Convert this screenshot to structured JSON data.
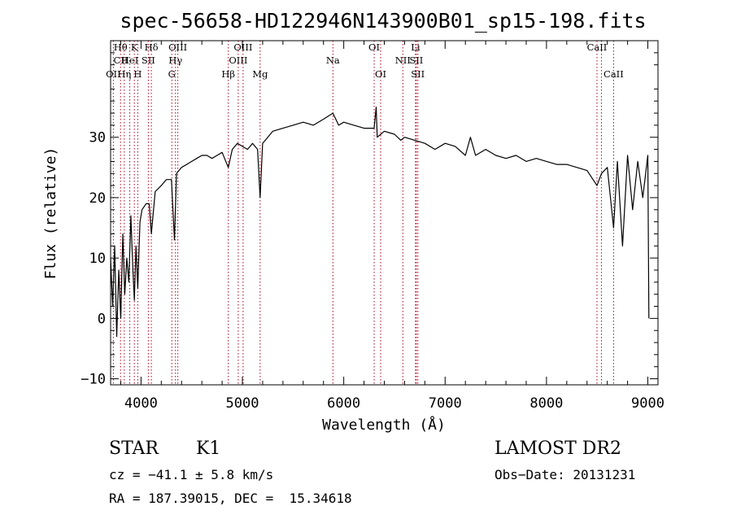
{
  "chart_data": {
    "type": "line",
    "title": "spec-56658-HD122946N143900B01_sp15-198.fits",
    "xlabel": "Wavelength (Å)",
    "ylabel": "Flux (relative)",
    "xlim": [
      3700,
      9100
    ],
    "ylim": [
      -11,
      46
    ],
    "xticks": [
      4000,
      5000,
      6000,
      7000,
      8000,
      9000
    ],
    "yticks": [
      -10,
      0,
      10,
      20,
      30
    ],
    "xtick_labels": [
      "4000",
      "5000",
      "6000",
      "7000",
      "8000",
      "9000"
    ],
    "ytick_labels": [
      "−10",
      "0",
      "10",
      "20",
      "30"
    ],
    "grid": false,
    "series": [
      {
        "values_desc": "spectrum",
        "x": [
          3700,
          3720,
          3740,
          3760,
          3780,
          3800,
          3820,
          3840,
          3860,
          3880,
          3900,
          3920,
          3934,
          3950,
          3968,
          3990,
          4010,
          4050,
          4080,
          4102,
          4140,
          4200,
          4250,
          4300,
          4330,
          4350,
          4400,
          4450,
          4500,
          4550,
          4600,
          4650,
          4700,
          4750,
          4800,
          4861,
          4900,
          4950,
          5000,
          5050,
          5100,
          5150,
          5175,
          5200,
          5250,
          5300,
          5400,
          5500,
          5600,
          5700,
          5800,
          5893,
          5950,
          6000,
          6100,
          6200,
          6300,
          6320,
          6330,
          6400,
          6500,
          6563,
          6600,
          6700,
          6800,
          6900,
          7000,
          7100,
          7200,
          7250,
          7300,
          7400,
          7500,
          7600,
          7700,
          7800,
          7900,
          8000,
          8100,
          8200,
          8300,
          8400,
          8498,
          8542,
          8600,
          8662,
          8700,
          8750,
          8800,
          8850,
          8900,
          8950,
          9000,
          9010
        ],
        "y": [
          10,
          2,
          12,
          -3,
          8,
          0,
          14,
          4,
          10,
          6,
          17,
          8,
          3,
          12,
          5,
          16,
          18,
          19,
          19,
          14,
          21,
          22,
          23,
          23,
          13,
          24,
          25,
          25.5,
          26,
          26.5,
          27,
          27,
          26.5,
          27,
          27.5,
          25,
          28,
          29,
          28.5,
          28,
          29,
          28,
          20,
          29,
          30,
          31,
          31.5,
          32,
          32.5,
          32,
          33,
          34,
          32,
          32.5,
          32,
          31.5,
          31.5,
          35,
          30,
          31,
          30.5,
          29.5,
          30,
          29.5,
          29,
          28,
          29,
          28.5,
          27,
          30,
          27,
          28,
          27,
          26.5,
          27,
          26,
          26.5,
          26,
          25.5,
          25.5,
          25,
          24.5,
          22,
          24,
          25,
          15,
          26,
          12,
          27,
          18,
          26,
          20,
          27,
          0
        ]
      }
    ],
    "spectral_lines": [
      {
        "label": "Hθ",
        "x": 3798,
        "row": 0
      },
      {
        "label": "CII",
        "x": 3800,
        "row": 1
      },
      {
        "label": "OII",
        "x": 3727,
        "row": 2
      },
      {
        "label": "Hη",
        "x": 3835,
        "row": 2
      },
      {
        "label": "K",
        "x": 3934,
        "row": 0
      },
      {
        "label": "HeI",
        "x": 3889,
        "row": 1
      },
      {
        "label": "H",
        "x": 3968,
        "row": 2
      },
      {
        "label": "Hδ",
        "x": 4102,
        "row": 0
      },
      {
        "label": "SII",
        "x": 4072,
        "row": 1
      },
      {
        "label": "OIII",
        "x": 4363,
        "row": 0
      },
      {
        "label": "Hγ",
        "x": 4340,
        "row": 1
      },
      {
        "label": "G",
        "x": 4304,
        "row": 2
      },
      {
        "label": "Hβ",
        "x": 4861,
        "row": 2
      },
      {
        "label": "OIII",
        "x": 5007,
        "row": 0
      },
      {
        "label": "OIII",
        "x": 4959,
        "row": 1
      },
      {
        "label": "Mg",
        "x": 5175,
        "row": 2
      },
      {
        "label": "Na",
        "x": 5893,
        "row": 1
      },
      {
        "label": "OI",
        "x": 6300,
        "row": 0
      },
      {
        "label": "OI",
        "x": 6364,
        "row": 2
      },
      {
        "label": "NII",
        "x": 6583,
        "row": 1
      },
      {
        "label": "Li",
        "x": 6708,
        "row": 0
      },
      {
        "label": "SII",
        "x": 6716,
        "row": 1
      },
      {
        "label": "SII",
        "x": 6731,
        "row": 2
      },
      {
        "label": "CaII",
        "x": 8498,
        "row": 0
      },
      {
        "label": "CaII",
        "x": 8662,
        "row": 2
      }
    ],
    "line_positions": [
      3727,
      3798,
      3835,
      3889,
      3934,
      3968,
      4072,
      4102,
      4304,
      4340,
      4363,
      4861,
      4959,
      5007,
      5175,
      5893,
      6300,
      6364,
      6583,
      6708,
      6716,
      6731,
      8498,
      8542,
      8662
    ],
    "colors": {
      "spectrum": "#000000",
      "lines": "#b0001e",
      "frame": "#000000"
    }
  },
  "info": {
    "class_label": "STAR",
    "subclass": "K1",
    "survey": "LAMOST DR2",
    "cz": "cz = −41.1 ± 5.8 km/s",
    "obs_date": "Obs−Date: 20131231",
    "coords": "RA = 187.39015, DEC =  15.34618"
  }
}
